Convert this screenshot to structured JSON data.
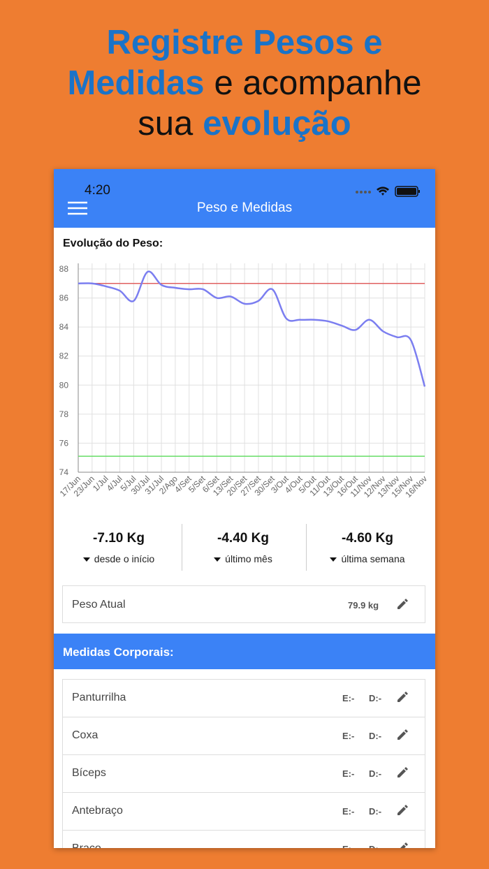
{
  "headline": {
    "lines": [
      [
        {
          "text": "Registre Pesos e",
          "accent": true
        }
      ],
      [
        {
          "text": "Medidas",
          "accent": true
        },
        {
          "text": "e acompanhe",
          "accent": false
        }
      ],
      [
        {
          "text": "sua",
          "accent": false
        },
        {
          "text": "evolução",
          "accent": true
        }
      ]
    ]
  },
  "status_bar": {
    "time": "4:20"
  },
  "app_bar": {
    "title": "Peso e Medidas"
  },
  "chart_data": {
    "type": "line",
    "title": "Evolução do Peso:",
    "categories": [
      "17/Jun",
      "23/Jun",
      "1/Jul",
      "4/Jul",
      "5/Jul",
      "30/Jul",
      "31/Jul",
      "2/Ago",
      "4/Set",
      "5/Set",
      "6/Set",
      "13/Set",
      "20/Set",
      "27/Set",
      "30/Set",
      "3/Out",
      "4/Out",
      "5/Out",
      "11/Out",
      "13/Out",
      "16/Out",
      "11/Nov",
      "12/Nov",
      "13/Nov",
      "15/Nov",
      "16/Nov"
    ],
    "values": [
      87.0,
      87.0,
      86.8,
      86.5,
      85.8,
      87.8,
      86.9,
      86.7,
      86.6,
      86.6,
      86.0,
      86.1,
      85.6,
      85.8,
      86.6,
      84.6,
      84.5,
      84.5,
      84.4,
      84.1,
      83.8,
      84.5,
      83.7,
      83.3,
      83.1,
      79.9
    ],
    "color": "#7b7ef0",
    "reference_lines": [
      {
        "value": 87,
        "color": "#e06060"
      },
      {
        "value": 75.1,
        "color": "#66dd66"
      }
    ],
    "ylim": [
      74,
      88
    ],
    "yticks": [
      74,
      76,
      78,
      80,
      82,
      84,
      86,
      88
    ],
    "grid": true
  },
  "stats": [
    {
      "value": "-7.10 Kg",
      "label": "desde o início"
    },
    {
      "value": "-4.40 Kg",
      "label": "último mês"
    },
    {
      "value": "-4.60 Kg",
      "label": "última semana"
    }
  ],
  "current_weight": {
    "label": "Peso Atual",
    "value": "79.9 kg"
  },
  "measures": {
    "title": "Medidas Corporais:",
    "rows": [
      {
        "name": "Panturrilha",
        "left": "E:-",
        "right": "D:-"
      },
      {
        "name": "Coxa",
        "left": "E:-",
        "right": "D:-"
      },
      {
        "name": "Bíceps",
        "left": "E:-",
        "right": "D:-"
      },
      {
        "name": "Antebraço",
        "left": "E:-",
        "right": "D:-"
      },
      {
        "name": "Braço",
        "left": "E:-",
        "right": "D:-"
      }
    ]
  }
}
